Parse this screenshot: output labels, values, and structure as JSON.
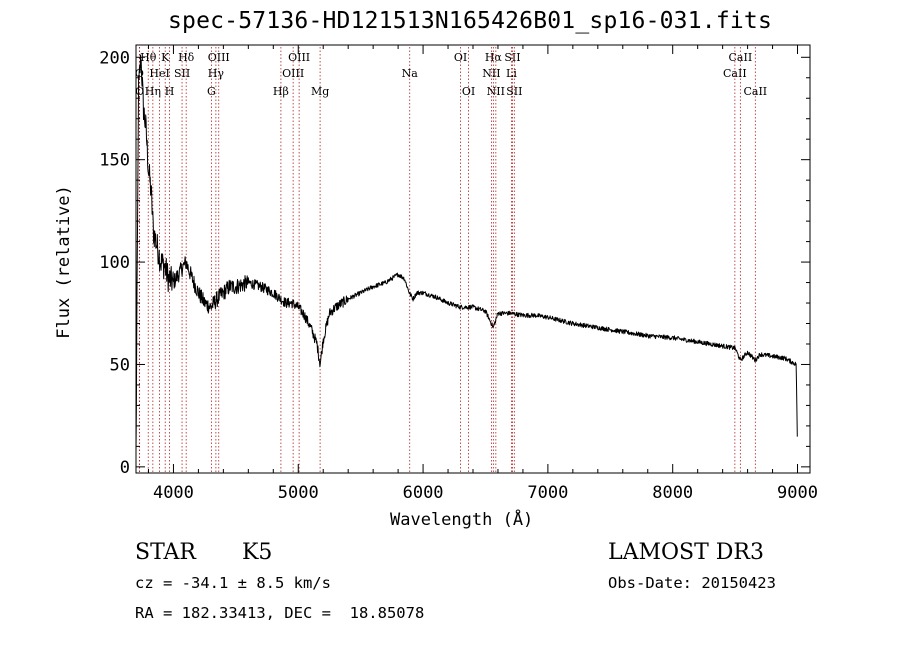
{
  "chart_data": {
    "type": "line",
    "title": "spec-57136-HD121513N165426B01_sp16-031.fits",
    "xlabel": "Wavelength (Å)",
    "ylabel": "Flux (relative)",
    "xlim": [
      3700,
      9100
    ],
    "ylim": [
      -3,
      206
    ],
    "x_ticks": [
      4000,
      5000,
      6000,
      7000,
      8000,
      9000
    ],
    "y_ticks": [
      0,
      50,
      100,
      150,
      200
    ],
    "grid": false,
    "series": [
      {
        "name": "spectrum",
        "x": [
          3700,
          3720,
          3740,
          3760,
          3780,
          3800,
          3820,
          3840,
          3860,
          3880,
          3900,
          3930,
          3960,
          4000,
          4050,
          4100,
          4150,
          4200,
          4250,
          4300,
          4350,
          4400,
          4450,
          4500,
          4600,
          4700,
          4800,
          4860,
          4900,
          4950,
          5000,
          5050,
          5100,
          5150,
          5175,
          5200,
          5250,
          5300,
          5400,
          5500,
          5600,
          5700,
          5800,
          5850,
          5890,
          5920,
          5950,
          6000,
          6100,
          6200,
          6300,
          6400,
          6500,
          6563,
          6600,
          6700,
          6800,
          6900,
          7000,
          7200,
          7400,
          7600,
          7800,
          8000,
          8200,
          8400,
          8500,
          8542,
          8600,
          8662,
          8700,
          8800,
          8900,
          8990,
          9000
        ],
        "values": [
          5,
          185,
          200,
          175,
          165,
          145,
          135,
          115,
          110,
          105,
          100,
          98,
          92,
          90,
          95,
          100,
          92,
          85,
          80,
          78,
          82,
          85,
          88,
          88,
          90,
          88,
          85,
          82,
          80,
          80,
          78,
          74,
          68,
          60,
          50,
          62,
          75,
          78,
          82,
          85,
          88,
          90,
          94,
          92,
          85,
          82,
          85,
          85,
          83,
          80,
          78,
          78,
          76,
          68,
          75,
          75,
          74,
          74,
          73,
          70,
          68,
          66,
          64,
          63,
          61,
          59,
          58,
          52,
          56,
          52,
          55,
          54,
          53,
          50,
          5
        ]
      }
    ],
    "line_markers": [
      {
        "label": "Hθ",
        "x": 3798,
        "row": 1
      },
      {
        "label": "O",
        "x": 3727,
        "row": 2
      },
      {
        "label": "O",
        "x": 3729,
        "row": 3
      },
      {
        "label": "K",
        "x": 3934,
        "row": 1
      },
      {
        "label": "HeI",
        "x": 3889,
        "row": 2
      },
      {
        "label": "Hη",
        "x": 3835,
        "row": 3
      },
      {
        "label": "H",
        "x": 3969,
        "row": 3
      },
      {
        "label": "SII",
        "x": 4069,
        "row": 2
      },
      {
        "label": "Hδ",
        "x": 4102,
        "row": 1
      },
      {
        "label": "OIII",
        "x": 4363,
        "row": 1
      },
      {
        "label": "Hγ",
        "x": 4340,
        "row": 2
      },
      {
        "label": "G",
        "x": 4304,
        "row": 3
      },
      {
        "label": "Hβ",
        "x": 4861,
        "row": 3
      },
      {
        "label": "OIII",
        "x": 5007,
        "row": 1
      },
      {
        "label": "OIII",
        "x": 4959,
        "row": 2
      },
      {
        "label": "Mg",
        "x": 5175,
        "row": 3
      },
      {
        "label": "Na",
        "x": 5893,
        "row": 2
      },
      {
        "label": "OI",
        "x": 6300,
        "row": 1
      },
      {
        "label": "OI",
        "x": 6364,
        "row": 3
      },
      {
        "label": "Hα",
        "x": 6563,
        "row": 1
      },
      {
        "label": "NII",
        "x": 6548,
        "row": 2
      },
      {
        "label": "NII",
        "x": 6583,
        "row": 3
      },
      {
        "label": "SII",
        "x": 6716,
        "row": 1
      },
      {
        "label": "Li",
        "x": 6708,
        "row": 2
      },
      {
        "label": "SII",
        "x": 6731,
        "row": 3
      },
      {
        "label": "CaII",
        "x": 8542,
        "row": 1
      },
      {
        "label": "CaII",
        "x": 8498,
        "row": 2
      },
      {
        "label": "CaII",
        "x": 8662,
        "row": 3
      }
    ]
  },
  "info": {
    "object_class": "STAR",
    "subclass": "K5",
    "survey": "LAMOST DR3",
    "cz": "cz = -34.1 ± 8.5 km/s",
    "obs_date": "Obs-Date: 20150423",
    "radec": "RA = 182.33413, DEC =  18.85078"
  },
  "colors": {
    "marker_line": "#b22222",
    "spectrum": "#000000",
    "axes": "#000000"
  }
}
